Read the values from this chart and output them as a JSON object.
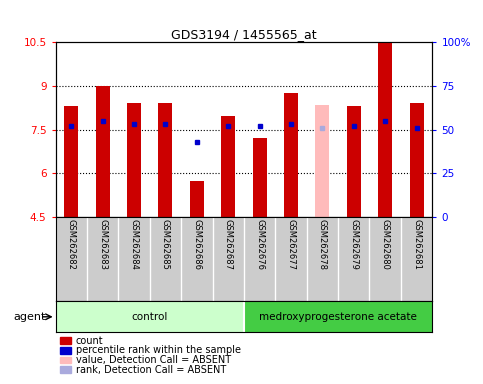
{
  "title": "GDS3194 / 1455565_at",
  "samples": [
    "GSM262682",
    "GSM262683",
    "GSM262684",
    "GSM262685",
    "GSM262686",
    "GSM262687",
    "GSM262676",
    "GSM262677",
    "GSM262678",
    "GSM262679",
    "GSM262680",
    "GSM262681"
  ],
  "values": [
    8.3,
    9.0,
    8.4,
    8.4,
    5.75,
    7.95,
    7.2,
    8.75,
    8.35,
    8.3,
    10.47,
    8.4
  ],
  "ranks": [
    52,
    55,
    53,
    53,
    43,
    52,
    52,
    53,
    51,
    52,
    55,
    51
  ],
  "absent": [
    false,
    false,
    false,
    false,
    false,
    false,
    false,
    false,
    true,
    false,
    false,
    false
  ],
  "groups": [
    {
      "label": "control",
      "start": 0,
      "end": 6,
      "color": "#ccffcc"
    },
    {
      "label": "medroxyprogesterone acetate",
      "start": 6,
      "end": 12,
      "color": "#44cc44"
    }
  ],
  "ylim": [
    4.5,
    10.5
  ],
  "yticks": [
    4.5,
    6.0,
    7.5,
    9.0,
    10.5
  ],
  "ytick_labels": [
    "4.5",
    "6",
    "7.5",
    "9",
    "10.5"
  ],
  "y2lim": [
    0,
    100
  ],
  "y2ticks": [
    0,
    25,
    50,
    75,
    100
  ],
  "y2tick_labels": [
    "0",
    "25",
    "50",
    "75",
    "100%"
  ],
  "bar_color": "#cc0000",
  "bar_absent_color": "#ffbbbb",
  "rank_color": "#0000cc",
  "rank_absent_color": "#aaaadd",
  "bar_width": 0.45,
  "bg_plot": "#ffffff",
  "bg_label": "#cccccc",
  "agent_label": "agent",
  "gridline_color": "black",
  "legend_entries": [
    {
      "color": "#cc0000",
      "label": "count"
    },
    {
      "color": "#0000cc",
      "label": "percentile rank within the sample"
    },
    {
      "color": "#ffbbbb",
      "label": "value, Detection Call = ABSENT"
    },
    {
      "color": "#aaaadd",
      "label": "rank, Detection Call = ABSENT"
    }
  ]
}
